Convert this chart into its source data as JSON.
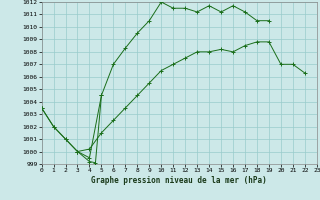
{
  "background_color": "#cce8e8",
  "grid_color": "#99cccc",
  "line_color": "#1a6e1a",
  "title": "Graphe pression niveau de la mer (hPa)",
  "xlim": [
    0,
    23
  ],
  "ylim": [
    999,
    1012
  ],
  "xticks": [
    0,
    1,
    2,
    3,
    4,
    5,
    6,
    7,
    8,
    9,
    10,
    11,
    12,
    13,
    14,
    15,
    16,
    17,
    18,
    19,
    20,
    21,
    22,
    23
  ],
  "yticks": [
    999,
    1000,
    1001,
    1002,
    1003,
    1004,
    1005,
    1006,
    1007,
    1008,
    1009,
    1010,
    1011,
    1012
  ],
  "line1_x": [
    0,
    1,
    2,
    3,
    4,
    5,
    6,
    7,
    8,
    9,
    10,
    11,
    12,
    13,
    14,
    15,
    16,
    17,
    18,
    19
  ],
  "line1_y": [
    1003.5,
    1002.0,
    1001.0,
    1000.0,
    999.5,
    1004.5,
    1007.0,
    1008.3,
    1009.5,
    1010.5,
    1012.0,
    1011.5,
    1011.5,
    1011.2,
    1011.7,
    1011.2,
    1011.7,
    1011.2,
    1010.5,
    1010.5
  ],
  "line2_x": [
    3,
    4,
    4.5,
    5
  ],
  "line2_y": [
    1000.0,
    999.2,
    999.1,
    1004.5
  ],
  "line3_x": [
    0,
    1,
    2,
    3,
    4,
    5,
    6,
    7,
    8,
    9,
    10,
    11,
    12,
    13,
    14,
    15,
    16,
    17,
    18,
    19,
    20,
    21,
    22
  ],
  "line3_y": [
    1003.5,
    1002.0,
    1001.0,
    1000.0,
    1000.2,
    1001.5,
    1002.5,
    1003.5,
    1004.5,
    1005.5,
    1006.5,
    1007.0,
    1007.5,
    1008.0,
    1008.0,
    1008.2,
    1008.0,
    1008.5,
    1008.8,
    1008.8,
    1007.0,
    1007.0,
    1006.3
  ],
  "title_fontsize": 5.5,
  "tick_fontsize": 4.5,
  "linewidth": 0.7,
  "markersize": 2.8,
  "markeredgewidth": 0.7
}
